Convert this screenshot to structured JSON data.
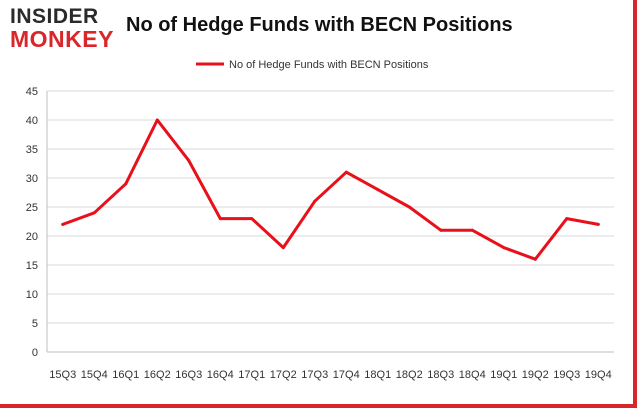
{
  "logo": {
    "line1": "INSIDER",
    "line2": "MONKEY"
  },
  "colors": {
    "series": "#e8101a",
    "brand_red": "#d9262b",
    "grid": "#d9d9d9"
  },
  "chart_data": {
    "type": "line",
    "title": "No of Hedge Funds with BECN Positions",
    "xlabel": "",
    "ylabel": "",
    "categories": [
      "15Q3",
      "15Q4",
      "16Q1",
      "16Q2",
      "16Q3",
      "16Q4",
      "17Q1",
      "17Q2",
      "17Q3",
      "17Q4",
      "18Q1",
      "18Q2",
      "18Q3",
      "18Q4",
      "19Q1",
      "19Q2",
      "19Q3",
      "19Q4"
    ],
    "series": [
      {
        "name": "No of Hedge Funds with BECN Positions",
        "values": [
          22,
          24,
          29,
          40,
          33,
          23,
          23,
          18,
          26,
          31,
          28,
          25,
          21,
          21,
          18,
          16,
          23,
          22
        ]
      }
    ],
    "ylim": [
      0,
      45
    ],
    "yticks": [
      0,
      5,
      10,
      15,
      20,
      25,
      30,
      35,
      40,
      45
    ],
    "grid": true,
    "legend_position": "top-center"
  }
}
